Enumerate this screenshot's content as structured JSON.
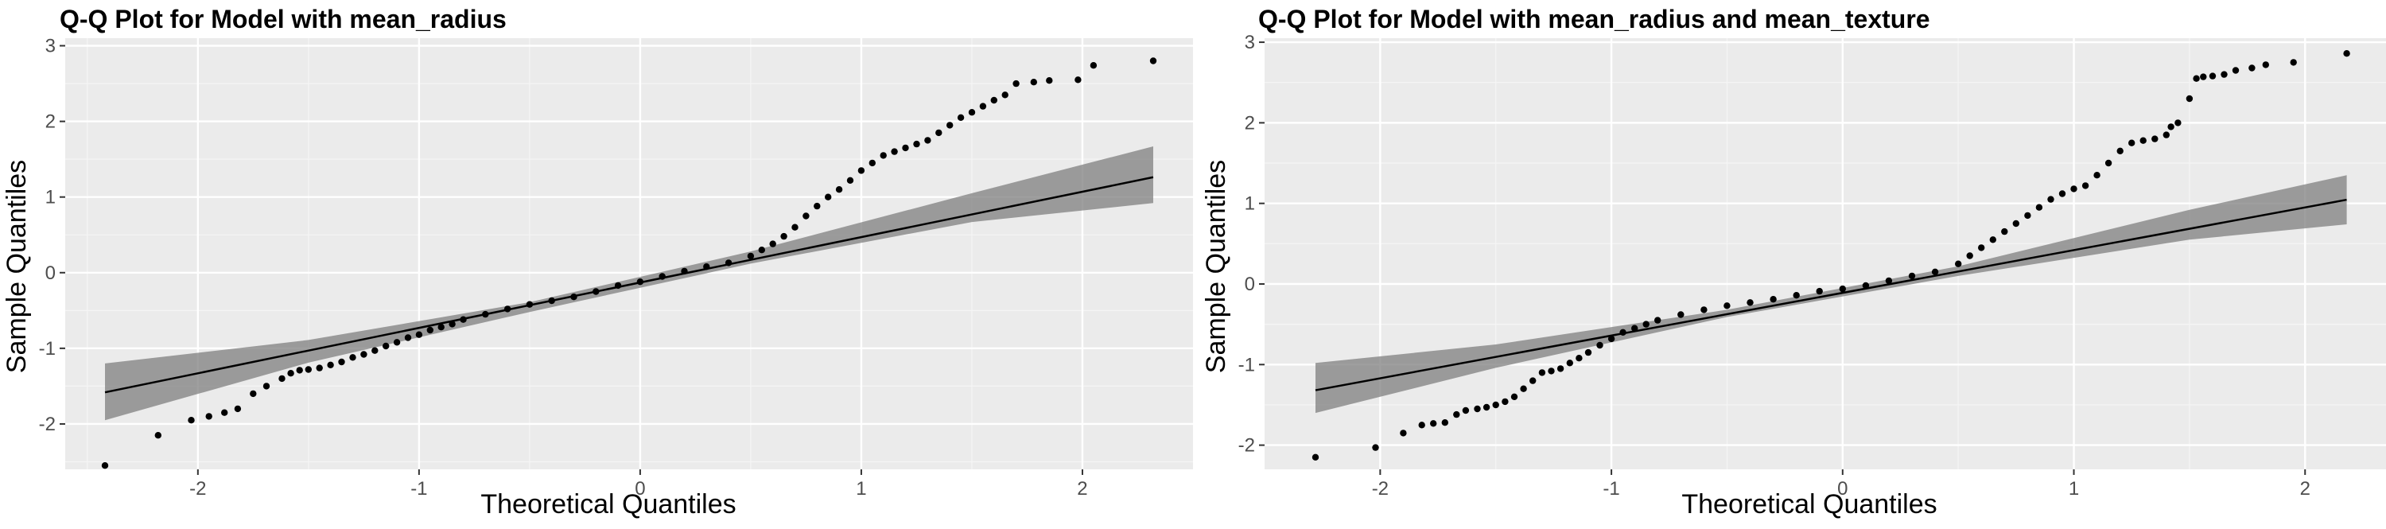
{
  "chart_data": [
    {
      "type": "scatter",
      "title": "Q-Q Plot for Model with mean_radius",
      "xlabel": "Theoretical Quantiles",
      "ylabel": "Sample Quantiles",
      "xlim": [
        -2.6,
        2.5
      ],
      "ylim": [
        -2.6,
        3.1
      ],
      "xticks": [
        -2,
        -1,
        0,
        1,
        2
      ],
      "yticks": [
        -2,
        -1,
        0,
        1,
        2,
        3
      ],
      "grid": true,
      "reference_line": {
        "slope": 0.6,
        "intercept": -0.13
      },
      "confidence_band": {
        "x": [
          -2.42,
          -1.5,
          -0.5,
          0.5,
          1.5,
          2.32
        ],
        "lower": [
          -1.95,
          -1.19,
          -0.52,
          0.12,
          0.67,
          0.92
        ],
        "upper": [
          -1.2,
          -0.89,
          -0.39,
          0.28,
          1.05,
          1.67
        ]
      },
      "points": {
        "x": [
          -2.42,
          -2.18,
          -2.03,
          -1.95,
          -1.88,
          -1.82,
          -1.75,
          -1.69,
          -1.62,
          -1.58,
          -1.54,
          -1.5,
          -1.45,
          -1.4,
          -1.35,
          -1.3,
          -1.25,
          -1.2,
          -1.15,
          -1.1,
          -1.05,
          -1.0,
          -0.95,
          -0.9,
          -0.85,
          -0.8,
          -0.7,
          -0.6,
          -0.5,
          -0.4,
          -0.3,
          -0.2,
          -0.1,
          0.0,
          0.1,
          0.2,
          0.3,
          0.4,
          0.5,
          0.55,
          0.6,
          0.65,
          0.7,
          0.75,
          0.8,
          0.85,
          0.9,
          0.95,
          1.0,
          1.05,
          1.1,
          1.15,
          1.2,
          1.25,
          1.3,
          1.35,
          1.4,
          1.45,
          1.5,
          1.55,
          1.6,
          1.65,
          1.7,
          1.78,
          1.85,
          1.98,
          2.05,
          2.32
        ],
        "y": [
          -2.55,
          -2.15,
          -1.95,
          -1.9,
          -1.85,
          -1.8,
          -1.6,
          -1.5,
          -1.4,
          -1.33,
          -1.29,
          -1.28,
          -1.26,
          -1.22,
          -1.18,
          -1.12,
          -1.08,
          -1.03,
          -0.97,
          -0.92,
          -0.86,
          -0.82,
          -0.76,
          -0.72,
          -0.68,
          -0.62,
          -0.55,
          -0.48,
          -0.42,
          -0.37,
          -0.32,
          -0.25,
          -0.17,
          -0.12,
          -0.05,
          0.02,
          0.08,
          0.13,
          0.22,
          0.3,
          0.38,
          0.48,
          0.6,
          0.75,
          0.88,
          1.0,
          1.1,
          1.22,
          1.35,
          1.45,
          1.55,
          1.6,
          1.65,
          1.7,
          1.75,
          1.85,
          1.95,
          2.05,
          2.12,
          2.2,
          2.28,
          2.35,
          2.5,
          2.52,
          2.54,
          2.55,
          2.74,
          2.8
        ]
      }
    },
    {
      "type": "scatter",
      "title": "Q-Q Plot for Model with mean_radius and mean_texture",
      "xlabel": "Theoretical Quantiles",
      "ylabel": "Sample Quantiles",
      "xlim": [
        -2.5,
        2.35
      ],
      "ylim": [
        -2.3,
        3.05
      ],
      "xticks": [
        -2,
        -1,
        0,
        1,
        2
      ],
      "yticks": [
        -2,
        -1,
        0,
        1,
        2,
        3
      ],
      "grid": true,
      "reference_line": {
        "slope": 0.53,
        "intercept": -0.11
      },
      "confidence_band": {
        "x": [
          -2.28,
          -1.5,
          -0.5,
          0.5,
          1.5,
          2.18
        ],
        "lower": [
          -1.6,
          -1.04,
          -0.41,
          0.1,
          0.55,
          0.74
        ],
        "upper": [
          -0.98,
          -0.75,
          -0.32,
          0.22,
          0.92,
          1.35
        ]
      },
      "points": {
        "x": [
          -2.28,
          -2.02,
          -1.9,
          -1.82,
          -1.77,
          -1.72,
          -1.67,
          -1.63,
          -1.58,
          -1.54,
          -1.5,
          -1.46,
          -1.42,
          -1.38,
          -1.34,
          -1.3,
          -1.26,
          -1.22,
          -1.18,
          -1.14,
          -1.1,
          -1.05,
          -1.0,
          -0.95,
          -0.9,
          -0.85,
          -0.8,
          -0.7,
          -0.6,
          -0.5,
          -0.4,
          -0.3,
          -0.2,
          -0.1,
          0.0,
          0.1,
          0.2,
          0.3,
          0.4,
          0.5,
          0.55,
          0.6,
          0.65,
          0.7,
          0.75,
          0.8,
          0.85,
          0.9,
          0.95,
          1.0,
          1.05,
          1.1,
          1.15,
          1.2,
          1.25,
          1.3,
          1.35,
          1.4,
          1.42,
          1.45,
          1.5,
          1.53,
          1.56,
          1.6,
          1.65,
          1.7,
          1.77,
          1.83,
          1.95,
          2.18
        ],
        "y": [
          -2.15,
          -2.03,
          -1.85,
          -1.75,
          -1.73,
          -1.72,
          -1.62,
          -1.57,
          -1.55,
          -1.53,
          -1.5,
          -1.46,
          -1.4,
          -1.3,
          -1.2,
          -1.1,
          -1.08,
          -1.05,
          -0.98,
          -0.92,
          -0.85,
          -0.76,
          -0.68,
          -0.6,
          -0.55,
          -0.5,
          -0.45,
          -0.38,
          -0.32,
          -0.27,
          -0.23,
          -0.19,
          -0.14,
          -0.09,
          -0.06,
          -0.02,
          0.04,
          0.1,
          0.15,
          0.25,
          0.35,
          0.45,
          0.55,
          0.65,
          0.75,
          0.85,
          0.95,
          1.05,
          1.12,
          1.18,
          1.22,
          1.35,
          1.5,
          1.65,
          1.75,
          1.78,
          1.8,
          1.85,
          1.95,
          2.0,
          2.3,
          2.55,
          2.57,
          2.58,
          2.6,
          2.65,
          2.68,
          2.72,
          2.75,
          2.86
        ]
      }
    }
  ]
}
